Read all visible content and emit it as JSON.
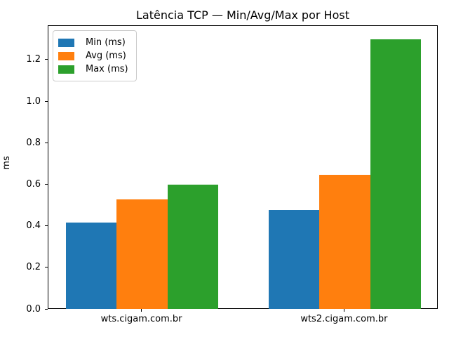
{
  "chart_data": {
    "type": "bar",
    "title": "Latência TCP — Min/Avg/Max por Host",
    "xlabel": "",
    "ylabel": "ms",
    "categories": [
      "wts.cigam.com.br",
      "wts2.cigam.com.br"
    ],
    "series": [
      {
        "name": "Min (ms)",
        "color": "#1f77b4",
        "values": [
          0.42,
          0.48
        ]
      },
      {
        "name": "Avg (ms)",
        "color": "#ff7f0e",
        "values": [
          0.53,
          0.65
        ]
      },
      {
        "name": "Max (ms)",
        "color": "#2ca02c",
        "values": [
          0.6,
          1.3
        ]
      }
    ],
    "ylim": [
      0,
      1.365
    ],
    "yticks": [
      0.0,
      0.2,
      0.4,
      0.6,
      0.8,
      1.0,
      1.2
    ],
    "ytick_labels": [
      "0.0",
      "0.2",
      "0.4",
      "0.6",
      "0.8",
      "1.0",
      "1.2"
    ],
    "bar_width": 0.25,
    "grid": false,
    "legend": {
      "position": "upper left",
      "entries": [
        "Min (ms)",
        "Avg (ms)",
        "Max (ms)"
      ]
    }
  }
}
